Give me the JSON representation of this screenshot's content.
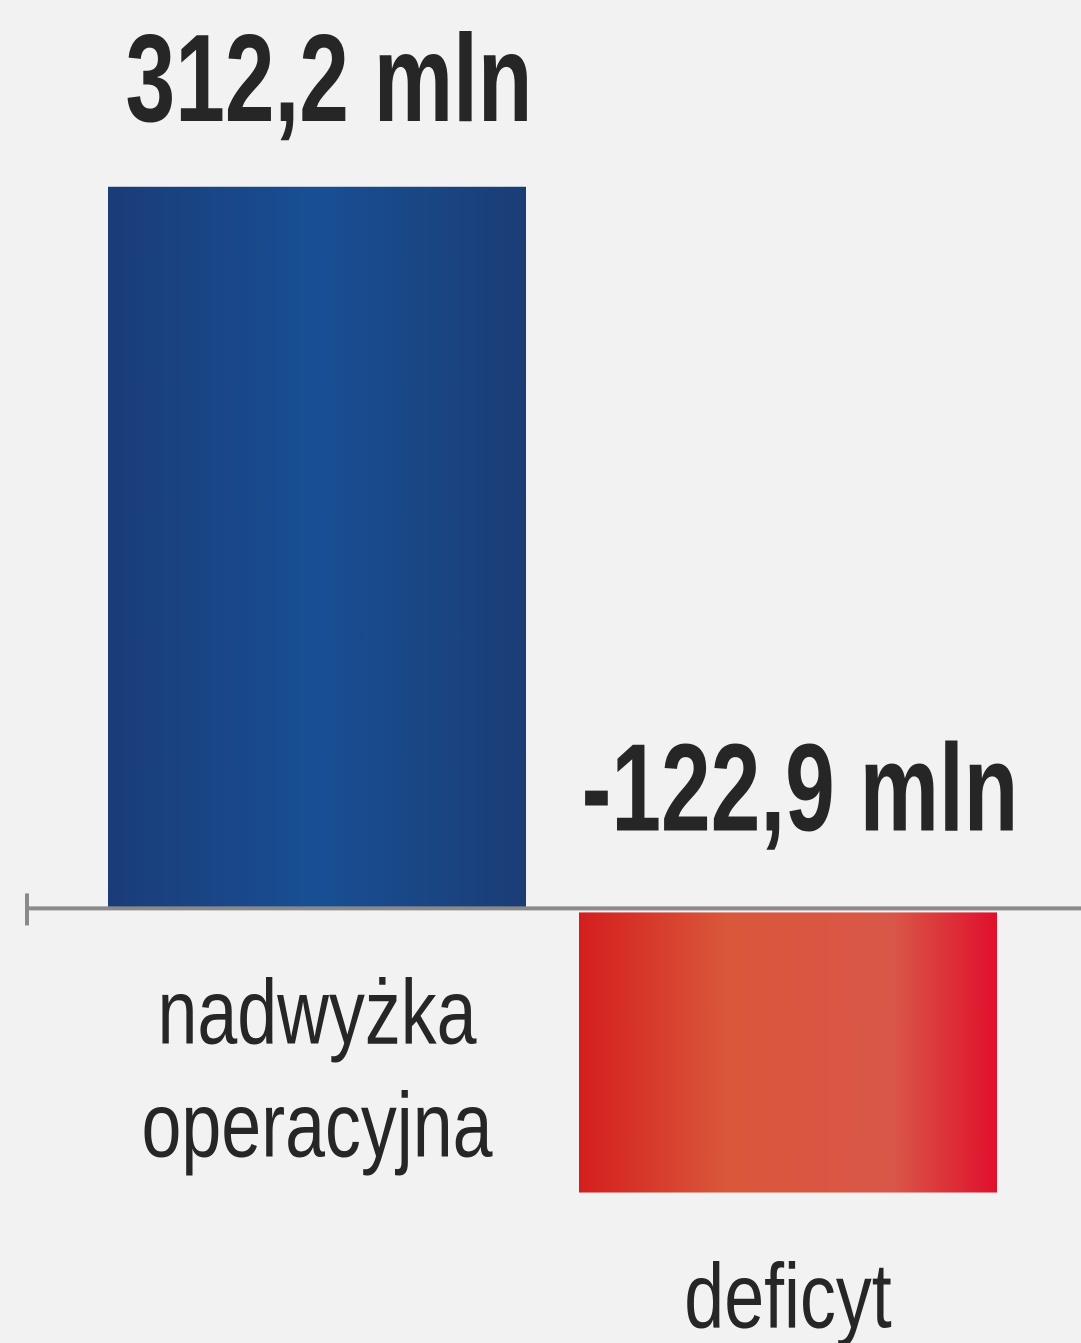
{
  "chart_data": {
    "type": "bar",
    "categories": [
      "nadwyżka operacyjna",
      "deficyt"
    ],
    "values": [
      312.2,
      -122.9
    ],
    "value_labels": [
      "312,2 mln",
      "-122,9 mln"
    ],
    "colors": [
      "#184f94",
      "#d9583e"
    ],
    "ylim": [
      -188,
      393
    ]
  }
}
